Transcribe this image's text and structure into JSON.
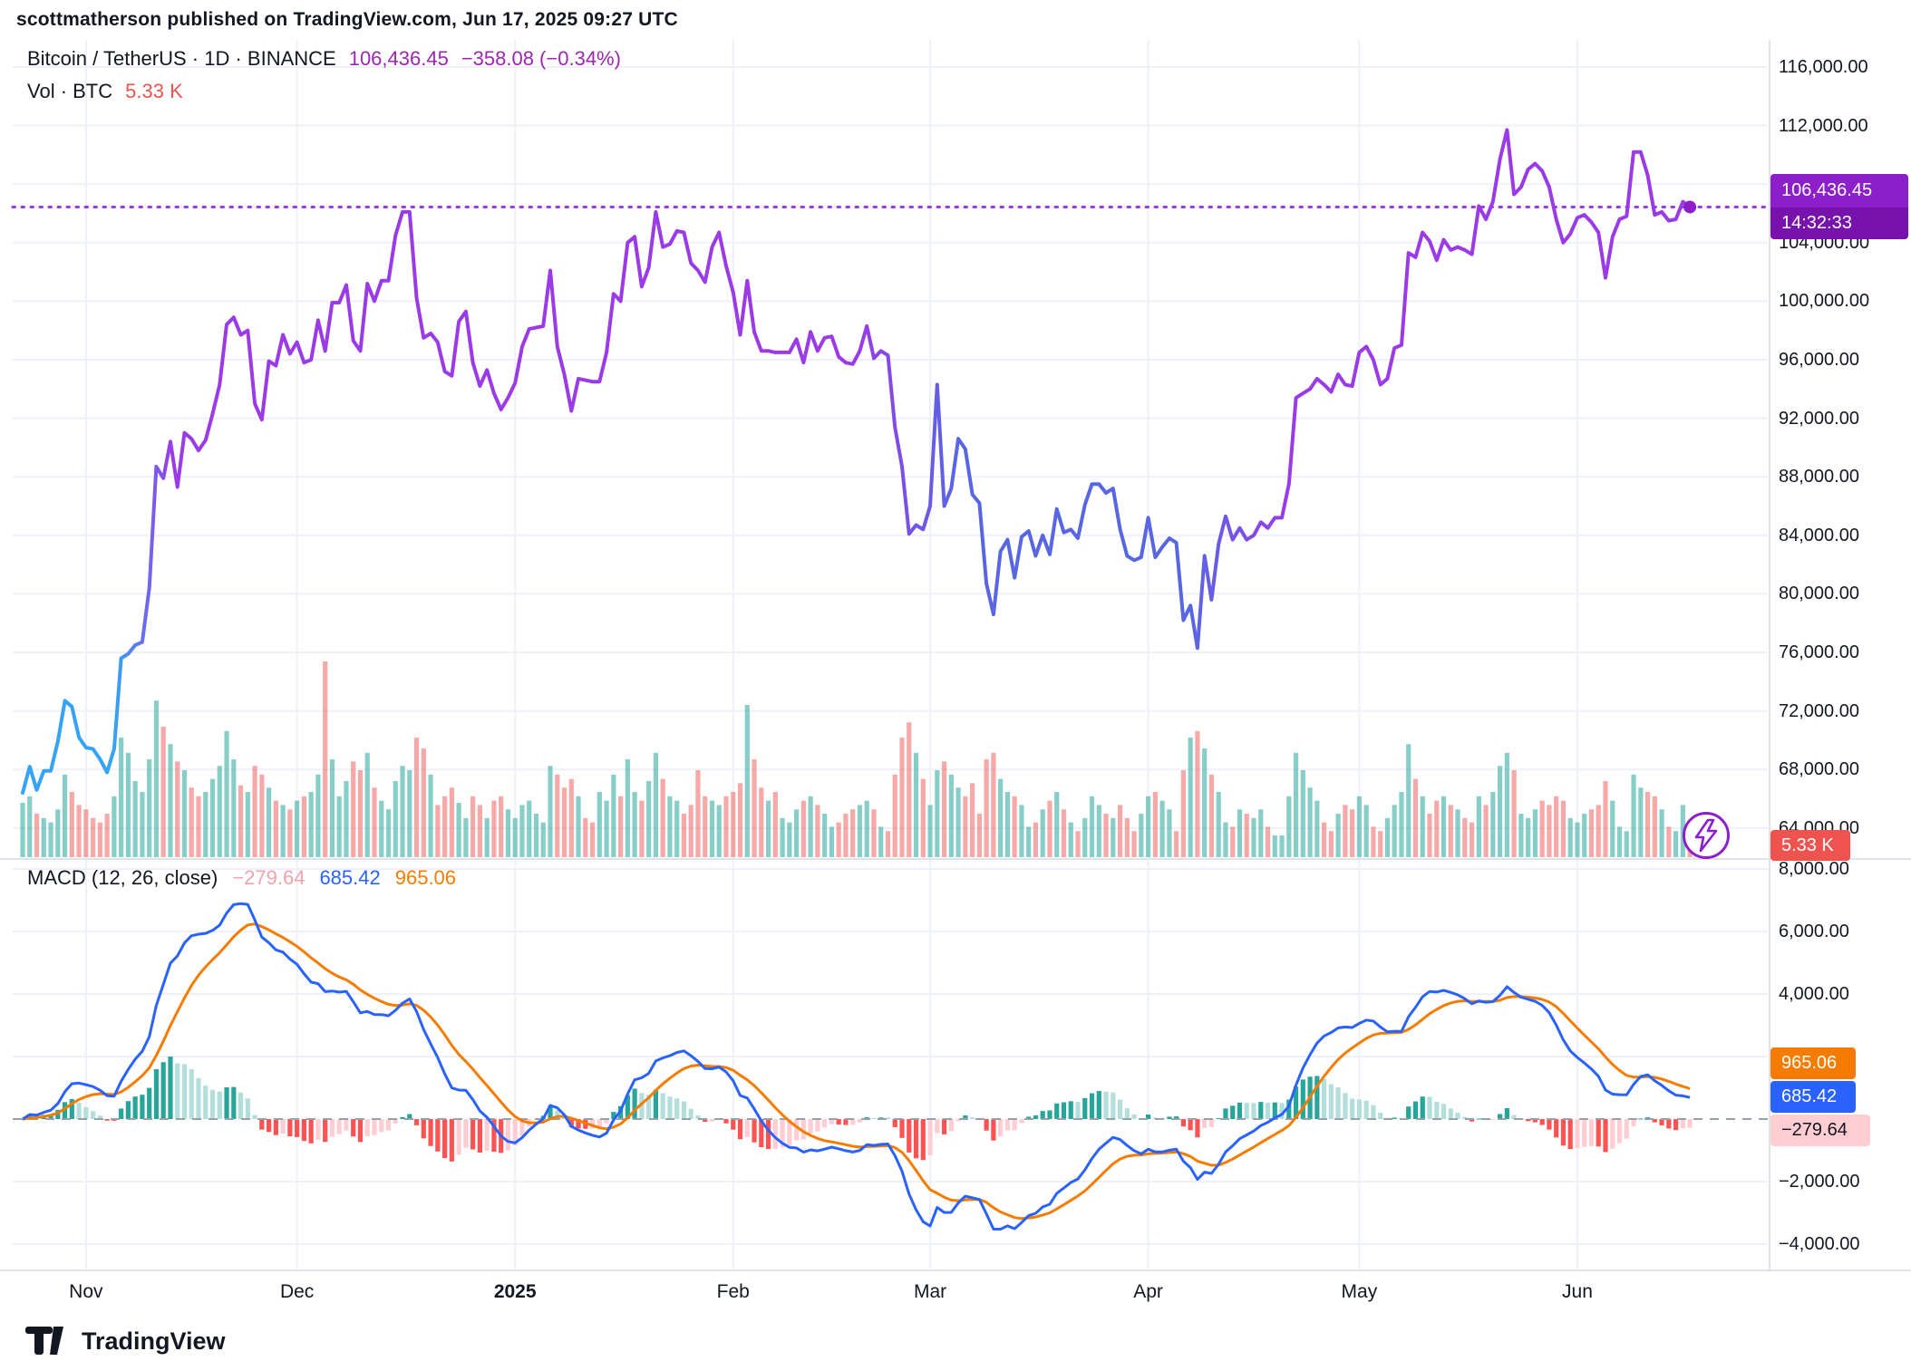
{
  "header": {
    "text": "scottmatherson published on TradingView.com, Jun 17, 2025 09:27 UTC"
  },
  "legend": {
    "title_full": "Bitcoin / TetherUS · 1D · BINANCE",
    "price": "106,436.45",
    "change": "−358.08 (−0.34%)",
    "volume_label": "Vol · BTC",
    "volume_value": "5.33 K"
  },
  "macd_legend": {
    "title": "MACD (12, 26, close)",
    "histogram": "−279.64",
    "macd": "685.42",
    "signal": "965.06"
  },
  "badges": {
    "price": {
      "value": "106,436.45",
      "countdown": "14:32:33"
    },
    "volume": {
      "value": "5.33 K"
    },
    "macd_signal": {
      "value": "965.06"
    },
    "macd_line": {
      "value": "685.42"
    },
    "macd_hist": {
      "value": "−279.64"
    }
  },
  "axes": {
    "price_ticks": [
      116000,
      112000,
      108000,
      104000,
      100000,
      96000,
      92000,
      88000,
      84000,
      80000,
      76000,
      72000,
      68000,
      64000
    ],
    "macd_ticks": [
      8000,
      6000,
      4000,
      2000,
      -2000,
      -4000
    ],
    "x_labels": [
      "Nov",
      "Dec",
      "2025",
      "Feb",
      "Mar",
      "Apr",
      "May",
      "Jun"
    ]
  },
  "footer": {
    "brand": "TradingView"
  },
  "colors": {
    "accent_purple": "#8c1fc9",
    "line_purple": "#9b3be8",
    "line_blue": "#35a3f6",
    "line_indigo": "#5866e4",
    "macd_line": "#2962ff",
    "macd_signal": "#f57c00",
    "vol_up": "rgba(38,166,154,0.55)",
    "vol_down": "rgba(239,83,80,0.5)",
    "hist_up_grow": "#26A69A",
    "hist_up_fall": "#B2DFDB",
    "hist_dn_fall": "#FF5252",
    "hist_dn_grow": "#FFCDD2",
    "grid": "#eef1f8",
    "border": "#e0e3eb",
    "zero_dash": "#9aa0ab"
  },
  "chart_data": {
    "type": "line",
    "title": "Bitcoin / TetherUS · 1D · BINANCE",
    "subpanes": [
      "volume",
      "MACD (12, 26, close)"
    ],
    "start_date": "2024-10-23",
    "end_date": "2025-06-17",
    "x_axis": "daily",
    "price_ylim": [
      62000,
      117800
    ],
    "macd_ylim": [
      -4600,
      8600
    ],
    "macd_params": {
      "fast": 12,
      "slow": 26,
      "signal": 9
    },
    "current": {
      "price": 106436.45,
      "volume_k": 5.33,
      "macd": 685.42,
      "signal": 965.06,
      "hist": -279.64
    },
    "month_tick_indices": [
      9,
      39,
      70,
      101,
      129,
      160,
      190,
      221
    ],
    "prices": [
      66400,
      68200,
      66600,
      67900,
      67900,
      69900,
      72700,
      72300,
      70200,
      69500,
      69400,
      68700,
      67800,
      69400,
      75600,
      75900,
      76500,
      76700,
      80400,
      88700,
      87900,
      90400,
      87300,
      91000,
      90600,
      89800,
      90500,
      92300,
      94300,
      98400,
      98900,
      97700,
      98000,
      93000,
      91900,
      95900,
      95600,
      97700,
      96400,
      97200,
      95800,
      96000,
      98700,
      96600,
      99900,
      99900,
      101100,
      97300,
      96600,
      101200,
      100000,
      101400,
      101400,
      104500,
      106100,
      106100,
      100200,
      97500,
      97800,
      97200,
      95200,
      94900,
      98600,
      99300,
      95800,
      94200,
      95300,
      93700,
      92600,
      93400,
      94400,
      96900,
      98100,
      98200,
      98300,
      102100,
      96900,
      95000,
      92500,
      94700,
      94600,
      94500,
      94500,
      96500,
      100500,
      100000,
      104000,
      104400,
      101000,
      102300,
      106100,
      103700,
      103900,
      104800,
      104700,
      102600,
      102100,
      101300,
      103700,
      104700,
      102400,
      100600,
      97700,
      101400,
      97900,
      96600,
      96600,
      96500,
      96500,
      96500,
      97400,
      95800,
      97900,
      96600,
      97500,
      97600,
      96200,
      95800,
      95700,
      96600,
      98300,
      96100,
      96600,
      96300,
      91400,
      88700,
      84100,
      84700,
      84400,
      86000,
      94300,
      86000,
      87200,
      90600,
      89900,
      86800,
      86200,
      80700,
      78600,
      82900,
      83700,
      81100,
      83900,
      84300,
      82600,
      84000,
      82700,
      85800,
      84200,
      84400,
      83800,
      86100,
      87500,
      87500,
      86900,
      87200,
      84400,
      82600,
      82300,
      82500,
      85200,
      82500,
      83200,
      83800,
      83500,
      78200,
      79200,
      76300,
      82600,
      79600,
      83400,
      85300,
      83700,
      84500,
      83700,
      84000,
      84900,
      84500,
      85200,
      85200,
      87500,
      93400,
      93700,
      94000,
      94700,
      94300,
      93800,
      95000,
      94300,
      94200,
      96500,
      96900,
      96000,
      94300,
      94700,
      96800,
      97000,
      103300,
      103000,
      104700,
      104100,
      102800,
      104200,
      103500,
      103700,
      103500,
      103200,
      106500,
      105600,
      106800,
      109700,
      111700,
      107300,
      107800,
      109000,
      109400,
      108900,
      107800,
      105600,
      104000,
      104600,
      105700,
      105900,
      105400,
      104700,
      101600,
      104400,
      105600,
      105800,
      110200,
      110200,
      108600,
      105900,
      106100,
      105500,
      105600,
      106800,
      106436.45
    ],
    "volumes_k_btc": [
      25,
      28,
      20,
      18,
      16,
      22,
      38,
      30,
      24,
      22,
      18,
      16,
      20,
      28,
      55,
      48,
      35,
      30,
      45,
      72,
      60,
      52,
      44,
      40,
      32,
      28,
      30,
      36,
      42,
      58,
      45,
      33,
      30,
      42,
      38,
      32,
      26,
      24,
      22,
      26,
      28,
      30,
      38,
      90,
      45,
      28,
      35,
      44,
      40,
      48,
      32,
      26,
      22,
      35,
      42,
      40,
      55,
      50,
      38,
      24,
      28,
      32,
      25,
      18,
      28,
      24,
      18,
      26,
      28,
      22,
      18,
      24,
      26,
      20,
      16,
      42,
      38,
      32,
      36,
      28,
      18,
      16,
      30,
      26,
      38,
      28,
      45,
      30,
      26,
      35,
      48,
      36,
      28,
      26,
      20,
      24,
      40,
      28,
      26,
      24,
      28,
      30,
      34,
      70,
      45,
      32,
      26,
      30,
      18,
      16,
      22,
      26,
      28,
      24,
      20,
      14,
      16,
      20,
      22,
      24,
      26,
      22,
      14,
      12,
      38,
      55,
      62,
      48,
      36,
      24,
      40,
      44,
      38,
      32,
      28,
      34,
      20,
      45,
      48,
      36,
      30,
      28,
      24,
      14,
      16,
      22,
      26,
      30,
      22,
      16,
      12,
      18,
      28,
      24,
      20,
      18,
      24,
      18,
      12,
      20,
      28,
      30,
      26,
      22,
      12,
      40,
      55,
      58,
      50,
      38,
      30,
      16,
      14,
      22,
      20,
      18,
      22,
      14,
      10,
      10,
      28,
      48,
      40,
      32,
      26,
      16,
      12,
      20,
      24,
      22,
      28,
      24,
      14,
      12,
      18,
      24,
      30,
      52,
      36,
      28,
      20,
      26,
      28,
      24,
      22,
      18,
      16,
      28,
      24,
      30,
      42,
      48,
      40,
      20,
      18,
      22,
      26,
      24,
      28,
      26,
      18,
      16,
      20,
      22,
      24,
      35,
      26,
      14,
      12,
      38,
      32,
      30,
      28,
      22,
      14,
      12,
      24,
      5.33
    ],
    "line_gradient": [
      {
        "offset": 0.0,
        "color": "#35a3f6"
      },
      {
        "offset": 0.055,
        "color": "#35a3f6"
      },
      {
        "offset": 0.09,
        "color": "#9b3be8"
      },
      {
        "offset": 0.5,
        "color": "#9b3be8"
      },
      {
        "offset": 0.56,
        "color": "#5866e4"
      },
      {
        "offset": 0.7,
        "color": "#5866e4"
      },
      {
        "offset": 0.76,
        "color": "#9b3be8"
      },
      {
        "offset": 1.0,
        "color": "#9b3be8"
      }
    ]
  }
}
